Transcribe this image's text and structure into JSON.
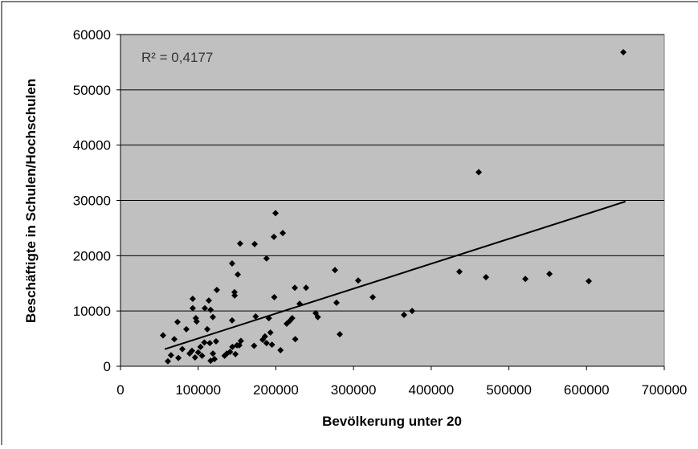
{
  "chart_data": {
    "type": "scatter",
    "xlabel": "Bevölkerung unter 20",
    "ylabel": "Beschäftigte in Schulen/Hochschulen",
    "annotation": "R² = 0,4177",
    "color": "#000000",
    "xlim": [
      0,
      700000
    ],
    "xticks": [
      0,
      100000,
      200000,
      300000,
      400000,
      500000,
      600000,
      700000
    ],
    "ylim": [
      0,
      60000
    ],
    "yticks": [
      0,
      10000,
      20000,
      30000,
      40000,
      50000,
      60000
    ],
    "grid": true,
    "x": [
      54800,
      61000,
      65000,
      69300,
      73400,
      74500,
      79600,
      84800,
      89000,
      92000,
      93000,
      93000,
      97000,
      98000,
      96000,
      100000,
      103000,
      105000,
      108000,
      108600,
      111700,
      113700,
      116000,
      118900,
      115000,
      119000,
      116000,
      123000,
      121000,
      124000,
      134000,
      137000,
      141000,
      144000,
      143700,
      143700,
      146800,
      147000,
      148000,
      150000,
      151000,
      154000,
      153000,
      155000,
      172000,
      172700,
      174000,
      183000,
      186000,
      188000,
      191000,
      188000,
      193000,
      195000,
      197500,
      199600,
      198000,
      206000,
      208900,
      214000,
      218000,
      221000,
      224400,
      225000,
      230600,
      238900,
      251300,
      254000,
      276100,
      278100,
      282300,
      306000,
      324700,
      365000,
      375400,
      436300,
      461200,
      470500,
      521200,
      552200,
      602800,
      647300
    ],
    "values": [
      5600,
      900,
      2000,
      4900,
      8000,
      1500,
      3100,
      6700,
      2300,
      2800,
      12200,
      10500,
      8700,
      8100,
      1600,
      2500,
      3500,
      1900,
      4300,
      10500,
      6700,
      11900,
      10200,
      8900,
      4200,
      2300,
      1000,
      4500,
      1300,
      13800,
      1900,
      2300,
      2600,
      3500,
      8300,
      18600,
      13400,
      12800,
      2200,
      3800,
      16600,
      22200,
      3800,
      4600,
      3700,
      22100,
      9000,
      4800,
      5400,
      19500,
      8700,
      4200,
      6100,
      3900,
      23400,
      27700,
      12500,
      2900,
      24100,
      7700,
      8200,
      8700,
      14200,
      4900,
      11300,
      14200,
      9600,
      8900,
      17400,
      11500,
      5800,
      15500,
      12500,
      9300,
      10000,
      17100,
      35100,
      16100,
      15800,
      16700,
      15400,
      56800
    ],
    "trendline": {
      "x": [
        57000,
        650000
      ],
      "values": [
        3100,
        29800
      ]
    }
  }
}
